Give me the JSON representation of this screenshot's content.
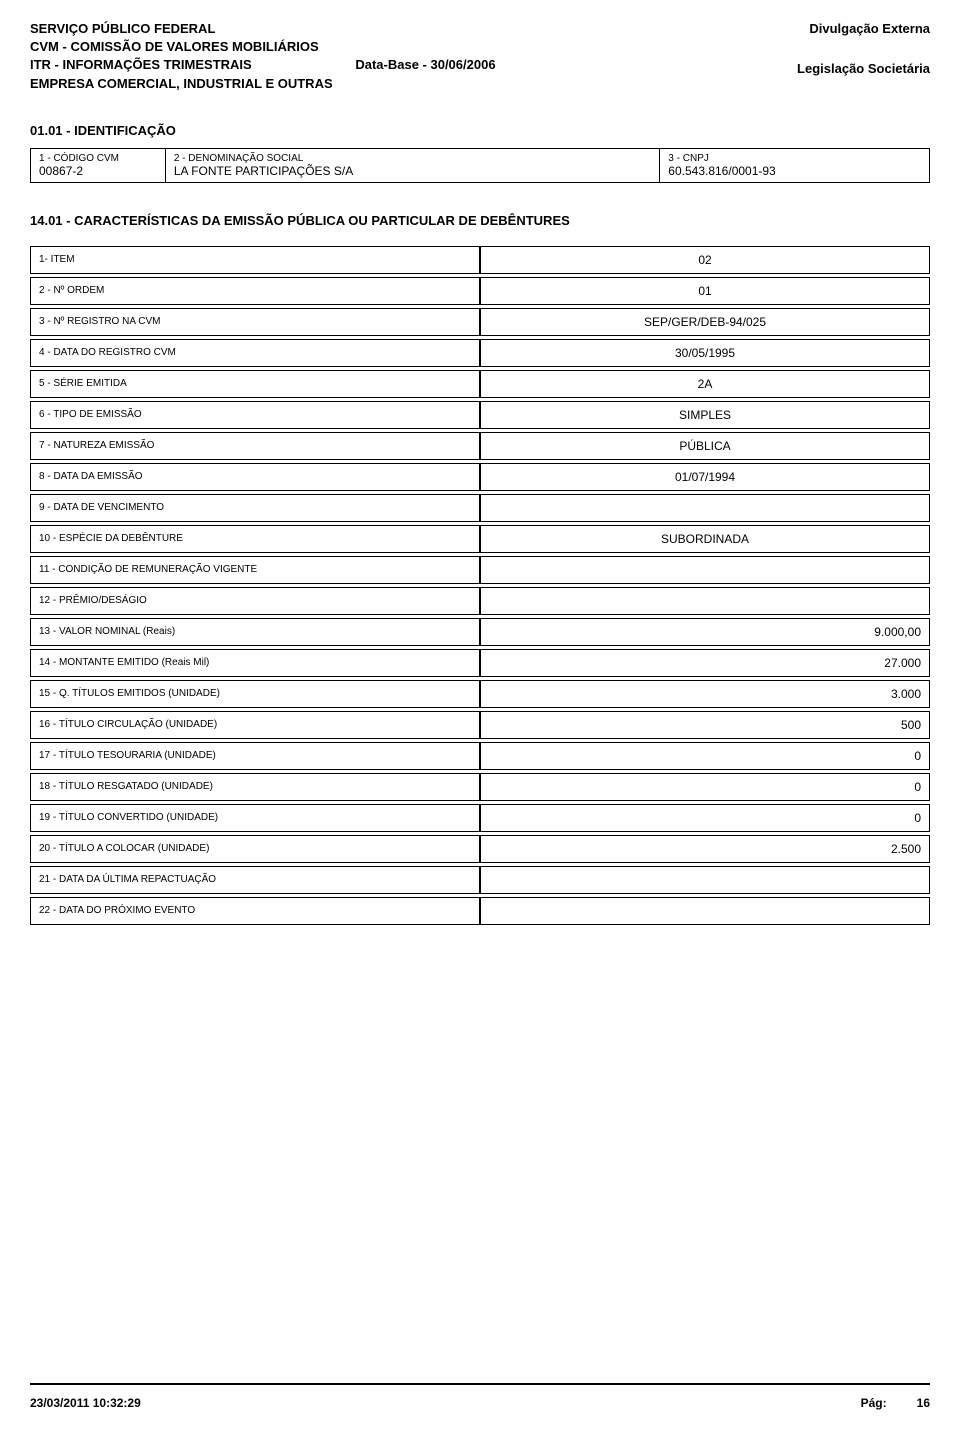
{
  "header": {
    "left_line1": "SERVIÇO PÚBLICO FEDERAL",
    "left_line2": "CVM - COMISSÃO DE VALORES MOBILIÁRIOS",
    "left_line3": "ITR - INFORMAÇÕES TRIMESTRAIS",
    "left_line3_extra": "Data-Base - 30/06/2006",
    "left_line4": "EMPRESA COMERCIAL, INDUSTRIAL E OUTRAS",
    "right_line1": "Divulgação Externa",
    "right_line2": "Legislação Societária"
  },
  "section1_title": "01.01 - IDENTIFICAÇÃO",
  "id_table": {
    "col1_label": "1 - CÓDIGO CVM",
    "col1_value": "00867-2",
    "col2_label": "2 - DENOMINAÇÃO SOCIAL",
    "col2_value": "LA FONTE PARTICIPAÇÕES S/A",
    "col3_label": "3 - CNPJ",
    "col3_value": "60.543.816/0001-93"
  },
  "section2_title": "14.01 - CARACTERÍSTICAS DA EMISSÃO PÚBLICA OU PARTICULAR DE DEBÊNTURES",
  "rows": [
    {
      "label": "1- ITEM",
      "value": "02",
      "align": "center"
    },
    {
      "label": "2 - Nº ORDEM",
      "value": "01",
      "align": "center"
    },
    {
      "label": "3 - Nº REGISTRO NA CVM",
      "value": "SEP/GER/DEB-94/025",
      "align": "center"
    },
    {
      "label": "4 - DATA DO REGISTRO CVM",
      "value": "30/05/1995",
      "align": "center"
    },
    {
      "label": "5 - SÉRIE EMITIDA",
      "value": "2A",
      "align": "center"
    },
    {
      "label": "6 - TIPO DE EMISSÃO",
      "value": "SIMPLES",
      "align": "center"
    },
    {
      "label": "7 - NATUREZA EMISSÃO",
      "value": "PÚBLICA",
      "align": "center"
    },
    {
      "label": "8 - DATA DA EMISSÃO",
      "value": "01/07/1994",
      "align": "center"
    },
    {
      "label": "9 - DATA DE VENCIMENTO",
      "value": "",
      "align": "center"
    },
    {
      "label": "10 - ESPÉCIE DA DEBÊNTURE",
      "value": "SUBORDINADA",
      "align": "center"
    },
    {
      "label": "11 - CONDIÇÃO DE REMUNERAÇÃO VIGENTE",
      "value": "",
      "align": "center"
    },
    {
      "label": "12 - PRÊMIO/DESÁGIO",
      "value": "",
      "align": "center"
    },
    {
      "label": "13 - VALOR NOMINAL        (Reais)",
      "value": "9.000,00",
      "align": "right"
    },
    {
      "label": "14 - MONTANTE EMITIDO    (Reais Mil)",
      "value": "27.000",
      "align": "right"
    },
    {
      "label": "15 - Q. TÍTULOS EMITIDOS  (UNIDADE)",
      "value": "3.000",
      "align": "right"
    },
    {
      "label": "16 - TÍTULO CIRCULAÇÃO   (UNIDADE)",
      "value": "500",
      "align": "right"
    },
    {
      "label": "17 - TÍTULO TESOURARIA   (UNIDADE)",
      "value": "0",
      "align": "right"
    },
    {
      "label": "18 - TÍTULO RESGATADO    (UNIDADE)",
      "value": "0",
      "align": "right"
    },
    {
      "label": "19 - TÍTULO CONVERTIDO  (UNIDADE)",
      "value": "0",
      "align": "right"
    },
    {
      "label": "20 - TÍTULO A COLOCAR     (UNIDADE)",
      "value": "2.500",
      "align": "right"
    },
    {
      "label": "21 - DATA DA ÚLTIMA REPACTUAÇÃO",
      "value": "",
      "align": "center"
    },
    {
      "label": "22 - DATA DO PRÓXIMO EVENTO",
      "value": "",
      "align": "center"
    }
  ],
  "footer": {
    "timestamp": "23/03/2011 10:32:29",
    "page_label": "Pág:",
    "page_number": "16"
  }
}
